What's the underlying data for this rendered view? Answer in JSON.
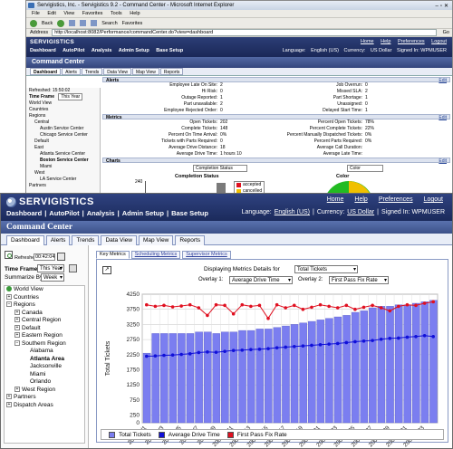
{
  "colors": {
    "brand": "#1b2a5b",
    "bar": "#7b7ef0",
    "line_blue": "#1010d8",
    "line_red": "#e01020",
    "accent_green": "#22bb22"
  },
  "bg": {
    "title": "Servigistics, Inc. - Servigistics 9.2 - Command Center - Microsoft Internet Explorer",
    "menu": [
      "File",
      "Edit",
      "View",
      "Favorites",
      "Tools",
      "Help"
    ],
    "tool": [
      "Back",
      "Search",
      "Favorites"
    ],
    "address_label": "Address",
    "url": "http://localhost:8082/Performance/commandCenter.do?view=dashboard",
    "go": "Go",
    "logo": "SERVIGISTICS",
    "nav": [
      "Dashboard",
      "AutoPilot",
      "Analysis",
      "Admin Setup",
      "Base Setup"
    ],
    "toplinks": [
      "Home",
      "Help",
      "Preferences",
      "Logout"
    ],
    "info": [
      "Language:",
      "English (US)",
      "Currency:",
      "US Dollar",
      "Signed In: WPMUSER"
    ],
    "page_title": "Command Center",
    "tabs": [
      "Dashboard",
      "Alerts",
      "Trends",
      "Data View",
      "Map View",
      "Reports"
    ],
    "refreshed": "Refreshed: 15:50:02",
    "time_frame": "Time Frame",
    "time_frame_value": "This Year",
    "tree": [
      {
        "label": "World View",
        "lvl": 0
      },
      {
        "label": "Countries",
        "lvl": 0
      },
      {
        "label": "Regions",
        "lvl": 0
      },
      {
        "label": "Central",
        "lvl": 1
      },
      {
        "label": "Austin Service Center",
        "lvl": 2
      },
      {
        "label": "Chicago Service Center",
        "lvl": 2
      },
      {
        "label": "Default",
        "lvl": 1
      },
      {
        "label": "East",
        "lvl": 1
      },
      {
        "label": "Atlanta Service Center",
        "lvl": 2
      },
      {
        "label": "Boston Service Center",
        "lvl": 2,
        "bold": true
      },
      {
        "label": "Miami",
        "lvl": 2
      },
      {
        "label": "West",
        "lvl": 1
      },
      {
        "label": "LA Service Center",
        "lvl": 2
      },
      {
        "label": "Partners",
        "lvl": 0
      }
    ],
    "alerts_title": "Alerts",
    "alerts_left": [
      [
        "Employee Late On Site:",
        "2"
      ],
      [
        "Hi Risk:",
        "0"
      ],
      [
        "Outage Reported:",
        "1"
      ],
      [
        "Part unavailable:",
        "2"
      ],
      [
        "Employee Rejected Order:",
        "0"
      ]
    ],
    "alerts_right": [
      [
        "Job Overrun:",
        "0"
      ],
      [
        "Missed SLA:",
        "2"
      ],
      [
        "Part Shortage:",
        "1"
      ],
      [
        "Unassigned:",
        "0"
      ],
      [
        "Delayed Start Time:",
        "1"
      ]
    ],
    "metrics_title": "Metrics",
    "metrics_left": [
      [
        "Open Tickets:",
        "202"
      ],
      [
        "Complete Tickets:",
        "148"
      ],
      [
        "Percent On Time Arrival:",
        "0%"
      ],
      [
        "Tickets with Parts Required:",
        "0"
      ],
      [
        "Average Drive Distance:",
        "18"
      ],
      [
        "Average Drive Time:",
        "1 hours 10 Minutes"
      ]
    ],
    "metrics_right": [
      [
        "Percent Open Tickets:",
        "78%"
      ],
      [
        "Percent Complete Tickets:",
        "22%"
      ],
      [
        "Percent Manually Dispatched Tickets:",
        "0%"
      ],
      [
        "Percent Parts Required:",
        "0%"
      ],
      [
        "Average Call Duration:",
        ""
      ],
      [
        "Average Late Time:",
        ""
      ]
    ],
    "charts_title": "Charts",
    "edit": "Edit",
    "chart_sel1": "Completion Status",
    "chart_sel2": "Color",
    "completion_title": "Completion Status",
    "color_title": "Color",
    "y_ticks": [
      "240",
      "180"
    ],
    "legend": [
      {
        "name": "accepted",
        "color": "#e01020"
      },
      {
        "name": "cancelled",
        "color": "#f0c000"
      },
      {
        "name": "completed",
        "color": "#22bb22"
      },
      {
        "name": "delayed",
        "color": "#2222cc"
      }
    ]
  },
  "front": {
    "logo": "SERVIGISTICS",
    "nav": [
      "Dashboard",
      "AutoPilot",
      "Analysis",
      "Admin Setup",
      "Base Setup"
    ],
    "toplinks": [
      "Home",
      "Help",
      "Preferences",
      "Logout"
    ],
    "language_label": "Language:",
    "language": "English (US)",
    "currency_label": "Currency:",
    "currency": "US Dollar",
    "signed_in": "Signed In: WPMUSER",
    "page_title": "Command Center",
    "tabs": [
      "Dashboard",
      "Alerts",
      "Trends",
      "Data View",
      "Map View",
      "Reports"
    ],
    "refreshed_label": "Refreshed:",
    "refreshed_time": "00:42:04",
    "time_frame_label": "Time Frame",
    "time_frame_value": "This Year",
    "summarize_label": "Summarize By:",
    "summarize_value": "Week",
    "tree": [
      {
        "label": "World View",
        "lvl": 0,
        "icon": "globe"
      },
      {
        "label": "Countries",
        "lvl": 0,
        "icon": "plus"
      },
      {
        "label": "Regions",
        "lvl": 0,
        "icon": "minus"
      },
      {
        "label": "Canada",
        "lvl": 1,
        "icon": "plus"
      },
      {
        "label": "Central Region",
        "lvl": 1,
        "icon": "plus"
      },
      {
        "label": "Default",
        "lvl": 1,
        "icon": "plus"
      },
      {
        "label": "Eastern Region",
        "lvl": 1,
        "icon": "plus"
      },
      {
        "label": "Southern Region",
        "lvl": 1,
        "icon": "minus"
      },
      {
        "label": "Alabama",
        "lvl": 2,
        "icon": "none"
      },
      {
        "label": "Atlanta Area",
        "lvl": 2,
        "icon": "none",
        "bold": true
      },
      {
        "label": "Jacksonville",
        "lvl": 2,
        "icon": "none"
      },
      {
        "label": "Miami",
        "lvl": 2,
        "icon": "none"
      },
      {
        "label": "Orlando",
        "lvl": 2,
        "icon": "none"
      },
      {
        "label": "West Region",
        "lvl": 1,
        "icon": "plus"
      },
      {
        "label": "Partners",
        "lvl": 0,
        "icon": "plus"
      },
      {
        "label": "Dispatch Areas",
        "lvl": 0,
        "icon": "plus"
      }
    ],
    "subtabs": [
      "Key Metrics",
      "Scheduling Metrics",
      "Supervisor Metrics"
    ],
    "displaying_label": "Displaying Metrics Details for",
    "displaying_value": "Total Tickets",
    "overlay1_label": "Overlay 1:",
    "overlay1_value": "Average Drive Time",
    "overlay2_label": "Overlay 2:",
    "overlay2_value": "First Pass Fix Rate"
  },
  "chart_data": {
    "type": "bar",
    "title": "",
    "ylabel": "Total Tickets",
    "ylim": [
      0,
      4250
    ],
    "y_ticks": [
      0,
      250,
      750,
      1250,
      1750,
      2250,
      2750,
      3250,
      3750,
      4250
    ],
    "x_tick_labels": [
      "2007 W1",
      "2007 W3",
      "2007 W5",
      "2007 W7",
      "2007 W9",
      "2007 W11",
      "2007 W13",
      "2007 W15",
      "2007 W17",
      "2007 W19",
      "2007 W21",
      "2007 W23",
      "2007 W25",
      "2007 W27",
      "2007 W29",
      "2007 W31",
      "2007 W33"
    ],
    "categories": [
      "W1",
      "W2",
      "W3",
      "W4",
      "W5",
      "W6",
      "W7",
      "W8",
      "W9",
      "W10",
      "W11",
      "W12",
      "W13",
      "W14",
      "W15",
      "W16",
      "W17",
      "W18",
      "W19",
      "W20",
      "W21",
      "W22",
      "W23",
      "W24",
      "W25",
      "W26",
      "W27",
      "W28",
      "W29",
      "W30",
      "W31",
      "W32",
      "W33",
      "W34"
    ],
    "series": [
      {
        "name": "Total Tickets",
        "type": "bar",
        "values": [
          2300,
          2950,
          2950,
          2950,
          2950,
          2950,
          3000,
          3000,
          2950,
          3000,
          3000,
          3050,
          3050,
          3100,
          3100,
          3150,
          3200,
          3250,
          3300,
          3350,
          3400,
          3450,
          3500,
          3550,
          3650,
          3700,
          3800,
          3850,
          3850,
          3900,
          3900,
          3950,
          4000,
          4050
        ]
      },
      {
        "name": "Average Drive Time",
        "type": "line",
        "values": [
          2200,
          2210,
          2230,
          2240,
          2260,
          2280,
          2320,
          2340,
          2330,
          2360,
          2390,
          2400,
          2420,
          2430,
          2450,
          2480,
          2500,
          2520,
          2540,
          2560,
          2580,
          2600,
          2620,
          2650,
          2680,
          2700,
          2720,
          2760,
          2790,
          2800,
          2830,
          2850,
          2880,
          2850
        ]
      },
      {
        "name": "First Pass Fix Rate",
        "type": "line",
        "values": [
          3900,
          3850,
          3880,
          3830,
          3860,
          3900,
          3800,
          3550,
          3900,
          3880,
          3600,
          3900,
          3850,
          3880,
          3450,
          3900,
          3800,
          3880,
          3750,
          3820,
          3900,
          3850,
          3800,
          3880,
          3750,
          3820,
          3880,
          3800,
          3700,
          3850,
          3900,
          3880,
          3950,
          4000
        ]
      }
    ],
    "grid": true,
    "legend_position": "bottom"
  }
}
